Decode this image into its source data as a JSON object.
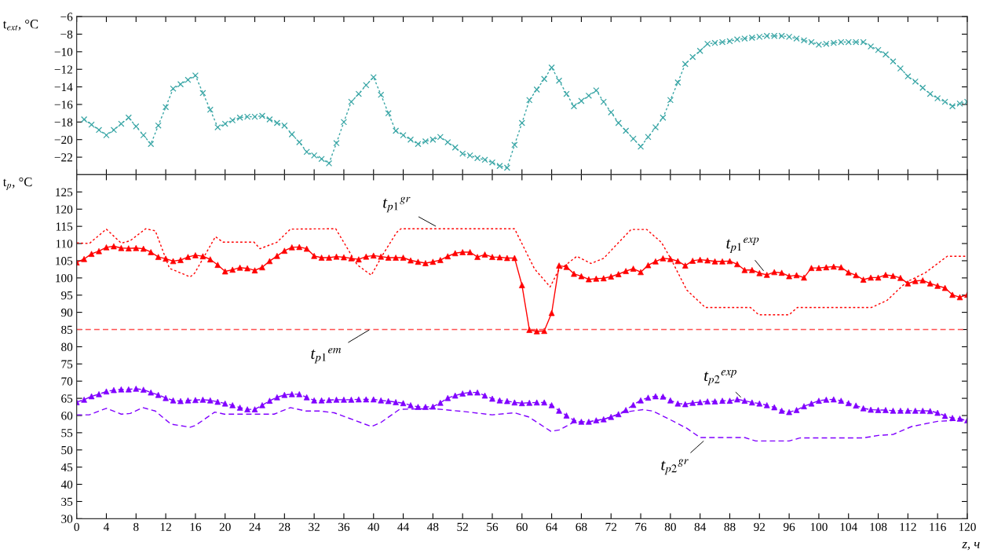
{
  "chart_data": [
    {
      "type": "line",
      "ylabel": "t$_{ext}$, °C",
      "xlim": [
        0,
        120
      ],
      "ylim": [
        -24,
        -6
      ],
      "xticks": [
        0,
        4,
        8,
        12,
        16,
        20,
        24,
        28,
        32,
        36,
        40,
        44,
        48,
        52,
        56,
        60,
        64,
        68,
        72,
        76,
        80,
        84,
        88,
        92,
        96,
        100,
        104,
        108,
        112,
        116,
        120
      ],
      "yticks": [
        -22,
        -20,
        -18,
        -16,
        -14,
        -12,
        -10,
        -8,
        -6
      ],
      "tick_labels": "y",
      "grid": false,
      "legend": false,
      "x": [
        1,
        2,
        3,
        4,
        5,
        6,
        7,
        8,
        9,
        10,
        11,
        12,
        13,
        14,
        15,
        16,
        17,
        18,
        19,
        20,
        21,
        22,
        23,
        24,
        25,
        26,
        27,
        28,
        29,
        30,
        31,
        32,
        33,
        34,
        35,
        36,
        37,
        38,
        39,
        40,
        41,
        42,
        43,
        44,
        45,
        46,
        47,
        48,
        49,
        50,
        51,
        52,
        53,
        54,
        55,
        56,
        57,
        58,
        59,
        60,
        61,
        62,
        63,
        64,
        65,
        66,
        67,
        68,
        69,
        70,
        71,
        72,
        73,
        74,
        75,
        76,
        77,
        78,
        79,
        80,
        81,
        82,
        83,
        84,
        85,
        86,
        87,
        88,
        89,
        90,
        91,
        92,
        93,
        94,
        95,
        96,
        97,
        98,
        99,
        100,
        101,
        102,
        103,
        104,
        105,
        106,
        107,
        108,
        109,
        110,
        111,
        112,
        113,
        114,
        115,
        116,
        117,
        118,
        119,
        120
      ],
      "series": [
        {
          "color": "#3aa6a6",
          "marker": "cross",
          "line_style": "dotted",
          "values": [
            -17.7,
            -18.3,
            -18.9,
            -19.5,
            -18.9,
            -18.2,
            -17.5,
            -18.5,
            -19.5,
            -20.5,
            -18.4,
            -16.3,
            -14.2,
            -13.7,
            -13.2,
            -12.7,
            -14.7,
            -16.6,
            -18.6,
            -18.2,
            -17.8,
            -17.5,
            -17.4,
            -17.4,
            -17.3,
            -17.7,
            -18.1,
            -18.4,
            -19.4,
            -20.3,
            -21.4,
            -21.8,
            -22.2,
            -22.7,
            -20.4,
            -18.0,
            -15.7,
            -14.8,
            -13.8,
            -12.9,
            -14.9,
            -17.0,
            -19.0,
            -19.5,
            -20.0,
            -20.5,
            -20.2,
            -20.0,
            -19.7,
            -20.3,
            -20.9,
            -21.6,
            -21.8,
            -22.1,
            -22.3,
            -22.6,
            -23.0,
            -23.2,
            -20.6,
            -18.1,
            -15.5,
            -14.3,
            -13.1,
            -11.8,
            -13.3,
            -14.8,
            -16.2,
            -15.6,
            -15.0,
            -14.4,
            -15.7,
            -16.9,
            -18.1,
            -19.0,
            -19.9,
            -20.8,
            -19.7,
            -18.6,
            -17.5,
            -15.5,
            -13.5,
            -11.4,
            -10.6,
            -9.9,
            -9.1,
            -9.0,
            -8.9,
            -8.8,
            -8.6,
            -8.5,
            -8.4,
            -8.3,
            -8.2,
            -8.2,
            -8.2,
            -8.3,
            -8.5,
            -8.7,
            -8.9,
            -9.2,
            -9.1,
            -9.0,
            -8.9,
            -8.9,
            -8.9,
            -8.9,
            -9.4,
            -9.8,
            -10.3,
            -11.1,
            -11.9,
            -12.8,
            -13.4,
            -14.1,
            -14.8,
            -15.3,
            -15.7,
            -16.2,
            -15.9,
            -15.7
          ]
        }
      ]
    },
    {
      "type": "line",
      "ylabel": "t$_{p}$, °C",
      "xlabel": "z, ч",
      "xlim": [
        0,
        120
      ],
      "ylim": [
        30,
        130
      ],
      "xticks": [
        0,
        4,
        8,
        12,
        16,
        20,
        24,
        28,
        32,
        36,
        40,
        44,
        48,
        52,
        56,
        60,
        64,
        68,
        72,
        76,
        80,
        84,
        88,
        92,
        96,
        100,
        104,
        108,
        112,
        116,
        120
      ],
      "yticks": [
        30,
        35,
        40,
        45,
        50,
        55,
        60,
        65,
        70,
        75,
        80,
        85,
        90,
        95,
        100,
        105,
        110,
        115,
        120,
        125
      ],
      "grid": false,
      "legend": false,
      "ref_lines": [
        {
          "axis": "y",
          "value": 85,
          "label": "t$_{p1}$$^{em}$",
          "color": "#ff5050",
          "line_style": "dashed"
        }
      ],
      "series": [
        {
          "name": "t$_{p1}$$^{gr}$",
          "color": "#ff0000",
          "marker": "none",
          "line_style": "dotted",
          "x": [
            0,
            1.7,
            4,
            6,
            7.2,
            9.3,
            10.6,
            12.5,
            15.3,
            15.9,
            18.7,
            19.7,
            23.9,
            24.7,
            27,
            28.8,
            34.9,
            37.8,
            39.7,
            41.2,
            43.1,
            43.7,
            59,
            61.7,
            63.8,
            64.9,
            67.4,
            69.3,
            71,
            74.7,
            76.8,
            78.8,
            80,
            82.2,
            84.7,
            90.8,
            91.9,
            96,
            97.1,
            107.1,
            109.2,
            111.8,
            114.4,
            117.3,
            120
          ],
          "values": [
            110.2,
            110,
            114.2,
            110.1,
            110.8,
            114.3,
            113.7,
            102.8,
            100.3,
            101.4,
            112,
            110.4,
            110.4,
            108.5,
            110.4,
            114.2,
            114.3,
            103.8,
            100.8,
            106.6,
            113.2,
            114.3,
            114.3,
            102.6,
            97.4,
            102.1,
            106.3,
            104.2,
            105.7,
            114.1,
            114.1,
            110.3,
            105.8,
            96.5,
            91.4,
            91.4,
            89.3,
            89.3,
            91.4,
            91.4,
            93.5,
            98.8,
            101.6,
            106.3,
            106.3
          ]
        },
        {
          "name": "t$_{p1}$$^{exp}$",
          "color": "#ff0000",
          "marker": "triangle",
          "line_style": "solid",
          "x": [
            0,
            1,
            2,
            3,
            4,
            5,
            6,
            7,
            8,
            9,
            10,
            11,
            12,
            13,
            14,
            15,
            16,
            17,
            18,
            19,
            20,
            21,
            22,
            23,
            24,
            25,
            26,
            27,
            28,
            29,
            30,
            31,
            32,
            33,
            34,
            35,
            36,
            37,
            38,
            39,
            40,
            41,
            42,
            43,
            44,
            45,
            46,
            47,
            48,
            49,
            50,
            51,
            52,
            53,
            54,
            55,
            56,
            57,
            58,
            59,
            60,
            61,
            62,
            63,
            64,
            65,
            66,
            67,
            68,
            69,
            70,
            71,
            72,
            73,
            74,
            75,
            76,
            77,
            78,
            79,
            80,
            81,
            82,
            83,
            84,
            85,
            86,
            87,
            88,
            89,
            90,
            91,
            92,
            93,
            94,
            95,
            96,
            97,
            98,
            99,
            100,
            101,
            102,
            103,
            104,
            105,
            106,
            107,
            108,
            109,
            110,
            111,
            112,
            113,
            114,
            115,
            116,
            117,
            118,
            119,
            120
          ],
          "values": [
            104.5,
            105.5,
            107,
            107.8,
            108.9,
            109.2,
            108.7,
            108.6,
            108.7,
            108.5,
            107.5,
            106.1,
            105.6,
            104.9,
            105.2,
            106.1,
            106.6,
            106.3,
            105.4,
            103.8,
            101.9,
            102.4,
            103.0,
            102.8,
            102.2,
            103.1,
            104.9,
            106.4,
            107.9,
            108.9,
            109.0,
            108.5,
            106.4,
            105.9,
            105.9,
            106.2,
            106.0,
            105.7,
            105.4,
            106.2,
            106.5,
            106.2,
            105.9,
            105.9,
            105.9,
            105.1,
            104.7,
            104.3,
            104.7,
            105.2,
            106.3,
            107.2,
            107.5,
            107.5,
            106.1,
            106.8,
            106.1,
            106.0,
            105.8,
            105.8,
            97.9,
            84.9,
            84.5,
            84.6,
            89.8,
            103.6,
            103.2,
            101.2,
            100.5,
            99.6,
            99.8,
            99.9,
            100.4,
            101.1,
            102.0,
            102.7,
            101.7,
            103.7,
            104.8,
            105.7,
            105.5,
            104.9,
            103.6,
            105.0,
            105.3,
            105.1,
            104.8,
            104.8,
            104.9,
            104.0,
            102.3,
            102.3,
            101.4,
            100.9,
            101.7,
            101.5,
            100.5,
            100.8,
            100.1,
            102.9,
            102.9,
            103.1,
            103.3,
            103.1,
            101.6,
            100.8,
            99.5,
            100.1,
            100.1,
            100.9,
            100.6,
            100.0,
            98.4,
            99.1,
            99.3,
            98.4,
            97.7,
            97.1,
            95.1,
            94.4,
            95.1
          ]
        },
        {
          "name": "t$_{p2}$$^{gr}$",
          "color": "#8000ff",
          "marker": "none",
          "line_style": "dashed",
          "x": [
            0,
            1.7,
            4,
            6,
            7.2,
            8.9,
            10.6,
            12.7,
            15.3,
            16,
            18.6,
            19.9,
            26.6,
            28.8,
            30.9,
            32.8,
            34.7,
            37.6,
            39.7,
            41,
            43.5,
            48,
            52,
            56,
            59,
            60.9,
            63.9,
            65,
            67.1,
            68.8,
            71.3,
            73.8,
            76.3,
            77.6,
            79.7,
            82.2,
            84,
            90,
            91.5,
            96,
            97.5,
            106,
            108,
            110,
            112.5,
            116,
            120
          ],
          "values": [
            60.2,
            60.2,
            62.1,
            60.4,
            60.6,
            62.3,
            61.3,
            57.5,
            56.6,
            57.1,
            61,
            60.4,
            60.4,
            62.3,
            61.3,
            61.3,
            60.8,
            58.5,
            56.8,
            58,
            61.8,
            62,
            61.2,
            60.2,
            60.8,
            59.6,
            55.4,
            55.8,
            58.2,
            58,
            59.1,
            61,
            61.7,
            61.3,
            59.1,
            56.3,
            53.6,
            53.6,
            52.6,
            52.6,
            53.5,
            53.5,
            54.2,
            54.5,
            56.8,
            58.3,
            58.8
          ]
        },
        {
          "name": "t$_{p2}$$^{exp}$",
          "color": "#8000ff",
          "marker": "triangle",
          "line_style": "dashed",
          "x": [
            0,
            1,
            2,
            3,
            4,
            5,
            6,
            7,
            8,
            9,
            10,
            11,
            12,
            13,
            14,
            15,
            16,
            17,
            18,
            19,
            20,
            21,
            22,
            23,
            24,
            25,
            26,
            27,
            28,
            29,
            30,
            31,
            32,
            33,
            34,
            35,
            36,
            37,
            38,
            39,
            40,
            41,
            42,
            43,
            44,
            45,
            46,
            47,
            48,
            49,
            50,
            51,
            52,
            53,
            54,
            55,
            56,
            57,
            58,
            59,
            60,
            61,
            62,
            63,
            64,
            65,
            66,
            67,
            68,
            69,
            70,
            71,
            72,
            73,
            74,
            75,
            76,
            77,
            78,
            79,
            80,
            81,
            82,
            83,
            84,
            85,
            86,
            87,
            88,
            89,
            90,
            91,
            92,
            93,
            94,
            95,
            96,
            97,
            98,
            99,
            100,
            101,
            102,
            103,
            104,
            105,
            106,
            107,
            108,
            109,
            110,
            111,
            112,
            113,
            114,
            115,
            116,
            117,
            118,
            119,
            120
          ],
          "values": [
            63.9,
            64.6,
            65.6,
            66.2,
            67.0,
            67.4,
            67.6,
            67.6,
            67.8,
            67.5,
            66.7,
            66.0,
            65.1,
            64.4,
            64.2,
            64.4,
            64.5,
            64.6,
            64.4,
            64.0,
            63.5,
            63.0,
            62.3,
            61.8,
            61.8,
            63.0,
            64.3,
            65.3,
            66.0,
            66.2,
            66.2,
            65.3,
            64.4,
            64.4,
            64.5,
            64.6,
            64.6,
            64.6,
            64.7,
            64.7,
            64.7,
            64.4,
            64.2,
            63.9,
            63.6,
            63.0,
            62.5,
            62.5,
            62.6,
            63.7,
            65.1,
            65.8,
            66.4,
            66.7,
            66.7,
            65.8,
            64.9,
            64.4,
            64.2,
            63.8,
            63.6,
            63.7,
            63.8,
            63.8,
            63.0,
            61.4,
            60.0,
            58.6,
            58.2,
            58.2,
            58.6,
            58.9,
            59.6,
            60.4,
            61.6,
            63.1,
            64.4,
            65.2,
            65.6,
            65.5,
            64.4,
            63.5,
            63.3,
            63.7,
            63.9,
            64.1,
            64.1,
            64.3,
            64.3,
            64.7,
            64.3,
            63.8,
            63.5,
            63.0,
            62.4,
            61.4,
            61.0,
            61.6,
            62.7,
            63.5,
            64.3,
            64.6,
            64.7,
            64.3,
            63.6,
            62.9,
            62.1,
            61.7,
            61.6,
            61.6,
            61.4,
            61.4,
            61.4,
            61.4,
            61.4,
            61.3,
            60.8,
            59.9,
            59.3,
            59.1,
            58.6
          ]
        }
      ]
    }
  ]
}
